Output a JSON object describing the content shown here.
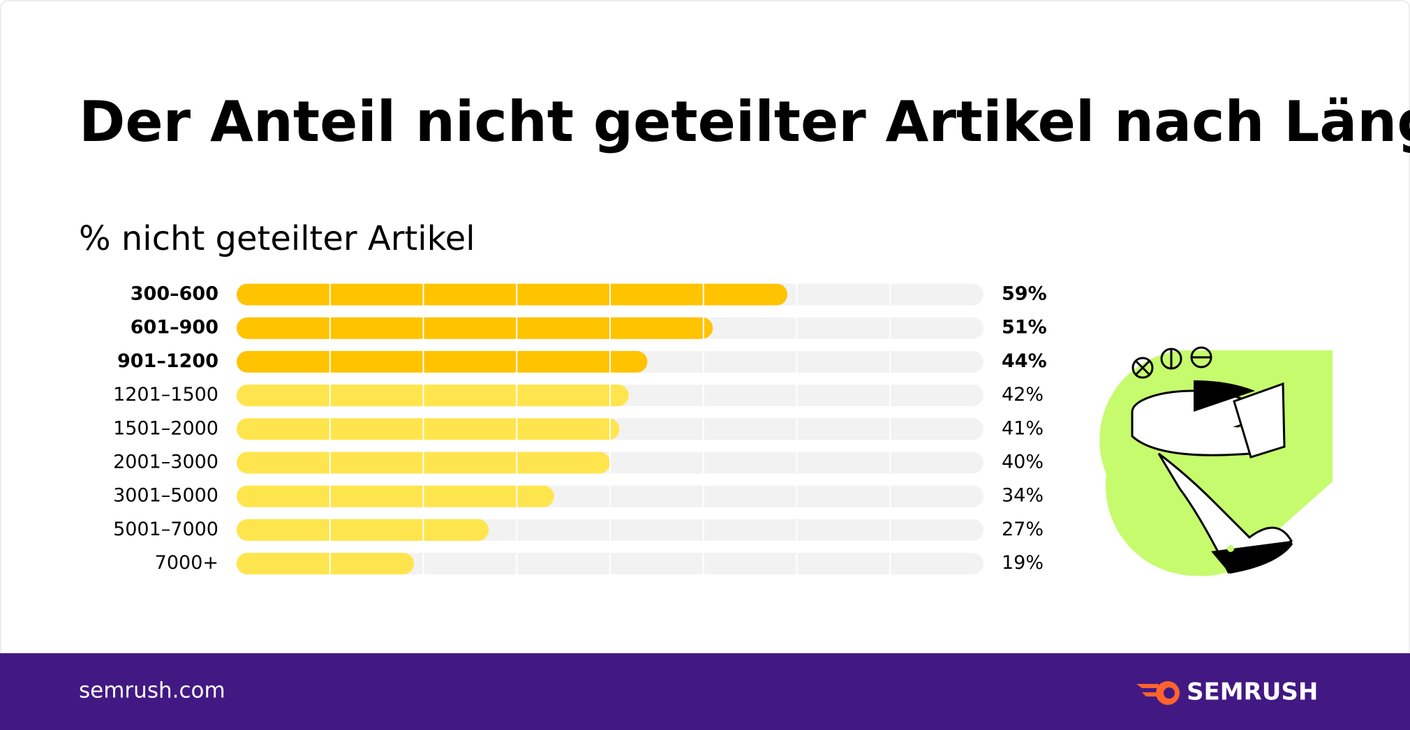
{
  "chart_data": {
    "type": "bar",
    "orientation": "horizontal",
    "title": "Der Anteil nicht geteilter Artikel nach Länge",
    "subtitle": "% nicht geteilter Artikel",
    "categories": [
      "300–600",
      "601–900",
      "901–1200",
      "1201–1500",
      "1501–2000",
      "2001–3000",
      "3001–5000",
      "5001–7000",
      "7000+"
    ],
    "values": [
      59,
      51,
      44,
      42,
      41,
      40,
      34,
      27,
      19
    ],
    "value_labels": [
      "59%",
      "51%",
      "44%",
      "42%",
      "41%",
      "40%",
      "34%",
      "27%",
      "19%"
    ],
    "colors": [
      "#ffc300",
      "#ffc300",
      "#ffc300",
      "#ffe54d",
      "#ffe54d",
      "#ffe54d",
      "#ffe54d",
      "#ffe54d",
      "#ffe54d"
    ],
    "bold": [
      true,
      true,
      true,
      false,
      false,
      false,
      false,
      false,
      false
    ],
    "track_color": "#f2f2f2",
    "xlim": [
      0,
      80
    ],
    "xticks": [
      10,
      20,
      30,
      40,
      50,
      60,
      70
    ],
    "grid": true
  },
  "footer": {
    "url": "semrush.com",
    "brand": "SEMRUSH"
  }
}
